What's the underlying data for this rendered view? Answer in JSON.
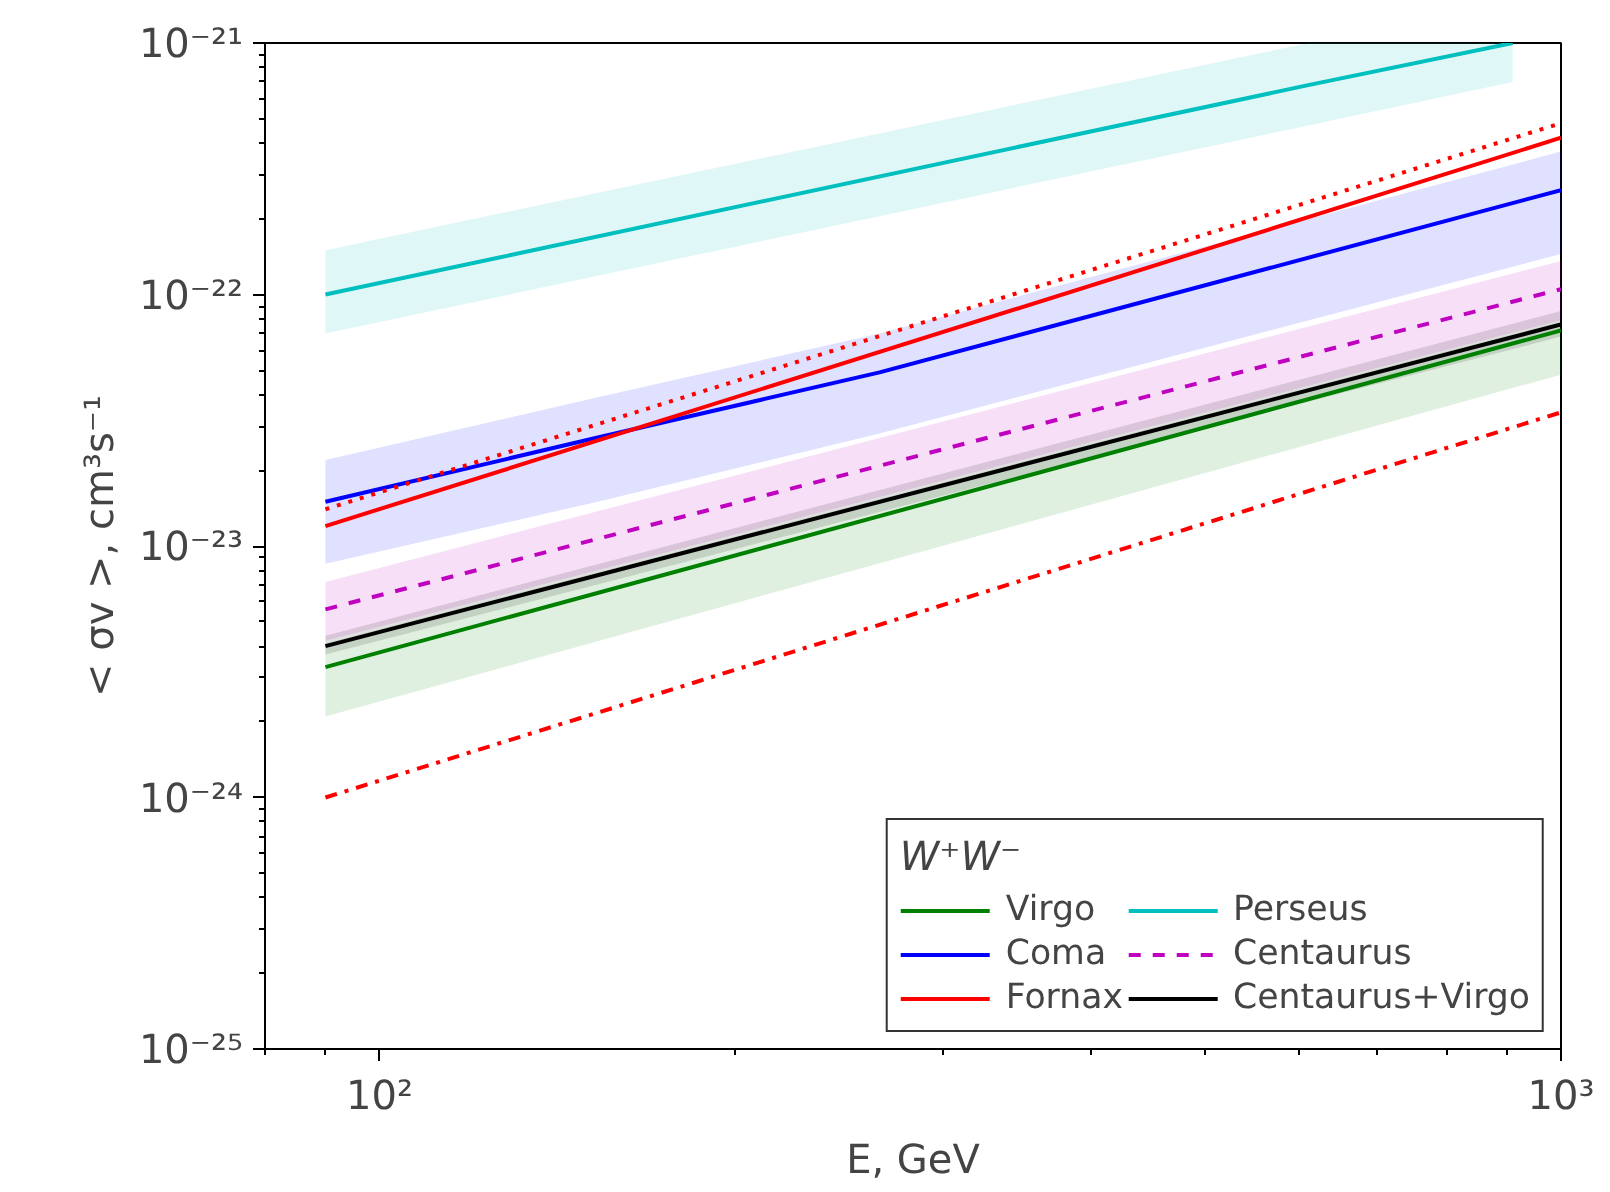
{
  "chart_data": {
    "type": "line",
    "xlabel": "E, GeV",
    "ylabel": "< σv >, cm³s⁻¹",
    "legend_title": "W⁺W⁻",
    "log": "xy",
    "legend": "bottom right",
    "grid": false,
    "xlim": [
      80,
      1000
    ],
    "ylim": [
      1e-25,
      1e-21
    ],
    "xticks": [
      {
        "value": 100,
        "label": "10²"
      },
      {
        "value": 1000,
        "label": "10³"
      }
    ],
    "yticks": [
      {
        "value": 1e-25,
        "label": "10⁻²⁵"
      },
      {
        "value": 1e-24,
        "label": "10⁻²⁴"
      },
      {
        "value": 1e-23,
        "label": "10⁻²³"
      },
      {
        "value": 1e-22,
        "label": "10⁻²²"
      },
      {
        "value": 1e-21,
        "label": "10⁻²¹"
      }
    ],
    "series": [
      {
        "name": "Virgo",
        "color": "#008000",
        "x": [
          90,
          1000
        ],
        "values": [
          3.3e-24,
          7.2e-23
        ],
        "lower": [
          2.1e-24,
          4.8e-23
        ],
        "upper": [
          4.1e-24,
          7.8e-23
        ]
      },
      {
        "name": "Coma",
        "color": "#0000ff",
        "x": [
          90,
          153,
          265,
          1000
        ],
        "values": [
          1.5e-23,
          2.7e-23,
          4.9e-23,
          2.6e-22
        ],
        "lower": [
          8.5e-24,
          1.5e-23,
          2.8e-23,
          1.45e-22
        ],
        "upper": [
          2.2e-23,
          3.9e-23,
          7e-23,
          3.7e-22
        ]
      },
      {
        "name": "Fornax",
        "color": "#ff0000",
        "x": [
          90,
          1000
        ],
        "values": [
          1.2e-23,
          4.2e-22
        ]
      },
      {
        "name": "Perseus",
        "color": "#00bfbf",
        "x": [
          90,
          611,
          910
        ],
        "values": [
          1e-22,
          6.8e-22,
          1e-21
        ],
        "lower": [
          7e-23,
          4.7e-22,
          7e-22
        ],
        "upper": [
          1.5e-22,
          1e-21,
          1e-21
        ]
      },
      {
        "name": "Centaurus",
        "color": "#bf00bf",
        "line_style": "dashed",
        "x": [
          90,
          1000
        ],
        "values": [
          5.6e-24,
          1.05e-22
        ],
        "lower": [
          4.2e-24,
          7.9e-23
        ],
        "upper": [
          7.2e-24,
          1.36e-22
        ]
      },
      {
        "name": "Centaurus+Virgo",
        "color": "#000000",
        "x": [
          90,
          1000
        ],
        "values": [
          4e-24,
          7.6e-23
        ],
        "lower": [
          3.7e-24,
          6.8e-23
        ],
        "upper": [
          4.4e-24,
          8.6e-23
        ]
      },
      {
        "color": "#ff0000",
        "line_style": "dotted",
        "x": [
          90,
          1000
        ],
        "values": [
          1.4e-23,
          4.8e-22
        ]
      },
      {
        "color": "#ff0000",
        "line_style": "dashdot",
        "x": [
          90,
          1000
        ],
        "values": [
          1e-24,
          3.4e-23
        ]
      }
    ]
  }
}
